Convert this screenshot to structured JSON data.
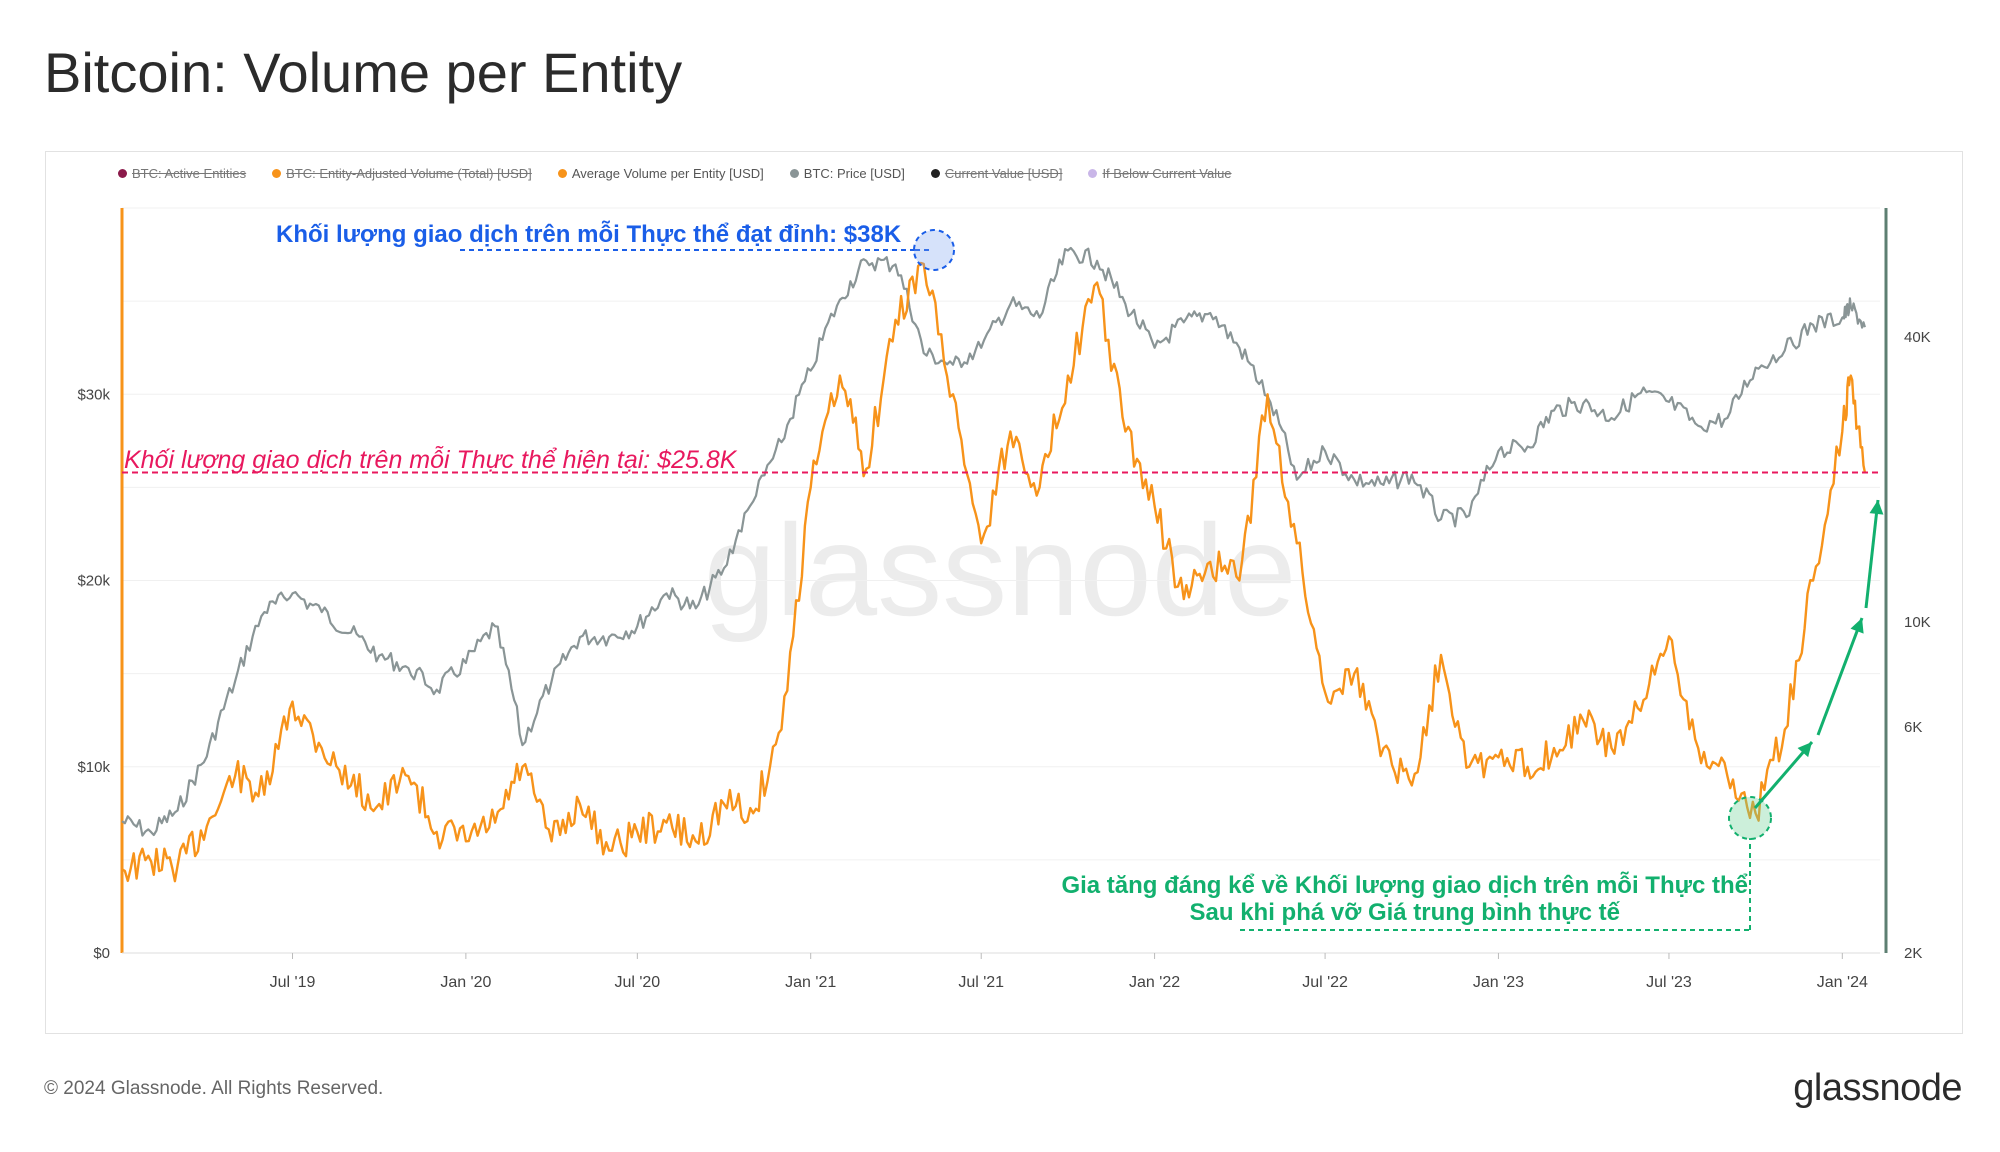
{
  "title": "Bitcoin: Volume per Entity",
  "footer": "© 2024 Glassnode. All Rights Reserved.",
  "brand": "glassnode",
  "watermark": "glassnode",
  "legend": [
    {
      "label": "BTC: Active Entities",
      "color": "#8b1a4a",
      "enabled": false
    },
    {
      "label": "BTC: Entity-Adjusted Volume (Total) [USD]",
      "color": "#f7931a",
      "enabled": false
    },
    {
      "label": "Average Volume per Entity [USD]",
      "color": "#f7931a",
      "enabled": true
    },
    {
      "label": "BTC: Price [USD]",
      "color": "#8a9596",
      "enabled": true
    },
    {
      "label": "Current Value [USD]",
      "color": "#222222",
      "enabled": false
    },
    {
      "label": "If Below Current Value",
      "color": "#c9b6e8",
      "enabled": false
    }
  ],
  "annotations": {
    "peak": "Khối lượng giao dịch trên mỗi Thực thể đạt đỉnh: $38K",
    "current": "Khối lượng giao dịch trên mỗi Thực thể hiện tại: $25.8K",
    "increase_line1": "Gia tăng đáng kể về Khối lượng giao dịch trên mỗi Thực thể",
    "increase_line2": "Sau khi phá vỡ Giá trung bình thực tế"
  },
  "colors": {
    "volume": "#f7931a",
    "price": "#8a9596",
    "peak_ann": "#1a5ee8",
    "current_ann": "#e8185e",
    "increase_ann": "#12b06e",
    "left_axis": "#f7931a",
    "right_axis": "#5d7f72"
  },
  "chart_data": {
    "type": "line",
    "x_ticks": [
      "Jul '19",
      "Jan '20",
      "Jul '20",
      "Jan '21",
      "Jul '21",
      "Jan '22",
      "Jul '22",
      "Jan '23",
      "Jul '23",
      "Jan '24"
    ],
    "x_range": [
      "2019-01-01",
      "2024-02-10"
    ],
    "y_left": {
      "ticks": [
        "$0",
        "$10k",
        "$20k",
        "$30k"
      ],
      "values": [
        0,
        10000,
        20000,
        30000
      ],
      "range": [
        0,
        40000
      ]
    },
    "y_right": {
      "ticks": [
        "2K",
        "6K",
        "10K",
        "40K"
      ],
      "values": [
        2000,
        6000,
        10000,
        40000
      ],
      "scale": "log",
      "range": [
        2000,
        75000
      ]
    },
    "reference_line": {
      "value": 25800,
      "axis": "left"
    },
    "series": [
      {
        "name": "Average Volume per Entity [USD]",
        "axis": "left",
        "points": [
          [
            "2019-01-01",
            4500
          ],
          [
            "2019-02-01",
            4900
          ],
          [
            "2019-03-01",
            4700
          ],
          [
            "2019-04-01",
            6800
          ],
          [
            "2019-05-01",
            9500
          ],
          [
            "2019-06-01",
            8500
          ],
          [
            "2019-07-01",
            13500
          ],
          [
            "2019-08-01",
            11000
          ],
          [
            "2019-09-01",
            9000
          ],
          [
            "2019-10-01",
            8000
          ],
          [
            "2019-11-01",
            9500
          ],
          [
            "2019-12-01",
            6500
          ],
          [
            "2020-01-01",
            6000
          ],
          [
            "2020-02-01",
            7000
          ],
          [
            "2020-03-01",
            10000
          ],
          [
            "2020-04-01",
            6000
          ],
          [
            "2020-05-01",
            8000
          ],
          [
            "2020-06-01",
            5500
          ],
          [
            "2020-07-01",
            6500
          ],
          [
            "2020-08-01",
            7000
          ],
          [
            "2020-09-01",
            6000
          ],
          [
            "2020-10-01",
            8000
          ],
          [
            "2020-11-01",
            7500
          ],
          [
            "2020-12-01",
            12000
          ],
          [
            "2021-01-01",
            25000
          ],
          [
            "2021-02-01",
            31000
          ],
          [
            "2021-03-01",
            26000
          ],
          [
            "2021-04-01",
            34000
          ],
          [
            "2021-05-01",
            37000
          ],
          [
            "2021-06-01",
            30000
          ],
          [
            "2021-07-01",
            22000
          ],
          [
            "2021-08-01",
            28000
          ],
          [
            "2021-09-01",
            25000
          ],
          [
            "2021-10-01",
            31000
          ],
          [
            "2021-11-01",
            36000
          ],
          [
            "2021-12-01",
            28000
          ],
          [
            "2022-01-01",
            24000
          ],
          [
            "2022-02-01",
            19000
          ],
          [
            "2022-03-01",
            21000
          ],
          [
            "2022-04-01",
            20000
          ],
          [
            "2022-05-01",
            30000
          ],
          [
            "2022-06-01",
            22000
          ],
          [
            "2022-07-01",
            14000
          ],
          [
            "2022-08-01",
            15000
          ],
          [
            "2022-09-01",
            11000
          ],
          [
            "2022-10-01",
            9000
          ],
          [
            "2022-11-01",
            16000
          ],
          [
            "2022-12-01",
            10000
          ],
          [
            "2023-01-01",
            10500
          ],
          [
            "2023-02-01",
            10000
          ],
          [
            "2023-03-01",
            11000
          ],
          [
            "2023-04-01",
            12500
          ],
          [
            "2023-05-01",
            11000
          ],
          [
            "2023-06-01",
            13000
          ],
          [
            "2023-07-01",
            17000
          ],
          [
            "2023-08-01",
            11000
          ],
          [
            "2023-09-01",
            9500
          ],
          [
            "2023-10-01",
            7500
          ],
          [
            "2023-11-01",
            12000
          ],
          [
            "2023-12-01",
            20000
          ],
          [
            "2024-01-01",
            28000
          ],
          [
            "2024-01-10",
            31000
          ],
          [
            "2024-01-25",
            25800
          ]
        ]
      },
      {
        "name": "BTC: Price [USD]",
        "axis": "right",
        "points": [
          [
            "2019-01-01",
            3800
          ],
          [
            "2019-02-01",
            3600
          ],
          [
            "2019-03-01",
            4000
          ],
          [
            "2019-04-01",
            5200
          ],
          [
            "2019-05-01",
            7500
          ],
          [
            "2019-06-01",
            10500
          ],
          [
            "2019-07-01",
            11500
          ],
          [
            "2019-08-01",
            10500
          ],
          [
            "2019-09-01",
            9500
          ],
          [
            "2019-10-01",
            8500
          ],
          [
            "2019-11-01",
            8000
          ],
          [
            "2019-12-01",
            7200
          ],
          [
            "2020-01-01",
            8200
          ],
          [
            "2020-02-01",
            9800
          ],
          [
            "2020-03-01",
            5500
          ],
          [
            "2020-04-01",
            7500
          ],
          [
            "2020-05-01",
            9300
          ],
          [
            "2020-06-01",
            9300
          ],
          [
            "2020-07-01",
            9800
          ],
          [
            "2020-08-01",
            11500
          ],
          [
            "2020-09-01",
            10700
          ],
          [
            "2020-10-01",
            13000
          ],
          [
            "2020-11-01",
            18000
          ],
          [
            "2020-12-01",
            24000
          ],
          [
            "2021-01-01",
            34000
          ],
          [
            "2021-02-01",
            48000
          ],
          [
            "2021-03-01",
            58000
          ],
          [
            "2021-04-01",
            57000
          ],
          [
            "2021-05-01",
            37000
          ],
          [
            "2021-06-01",
            35000
          ],
          [
            "2021-07-01",
            38000
          ],
          [
            "2021-08-01",
            47000
          ],
          [
            "2021-09-01",
            44000
          ],
          [
            "2021-10-01",
            61000
          ],
          [
            "2021-11-01",
            58000
          ],
          [
            "2021-12-01",
            47000
          ],
          [
            "2022-01-01",
            38000
          ],
          [
            "2022-02-01",
            43000
          ],
          [
            "2022-03-01",
            45000
          ],
          [
            "2022-04-01",
            38000
          ],
          [
            "2022-05-01",
            30000
          ],
          [
            "2022-06-01",
            20000
          ],
          [
            "2022-07-01",
            23000
          ],
          [
            "2022-08-01",
            20000
          ],
          [
            "2022-09-01",
            19500
          ],
          [
            "2022-10-01",
            20500
          ],
          [
            "2022-11-01",
            16500
          ],
          [
            "2022-12-01",
            16800
          ],
          [
            "2023-01-01",
            23000
          ],
          [
            "2023-02-01",
            23500
          ],
          [
            "2023-03-01",
            28000
          ],
          [
            "2023-04-01",
            29000
          ],
          [
            "2023-05-01",
            27000
          ],
          [
            "2023-06-01",
            30500
          ],
          [
            "2023-07-01",
            29200
          ],
          [
            "2023-08-01",
            26000
          ],
          [
            "2023-09-01",
            27000
          ],
          [
            "2023-10-01",
            34500
          ],
          [
            "2023-11-01",
            37500
          ],
          [
            "2023-12-01",
            42500
          ],
          [
            "2024-01-01",
            44000
          ],
          [
            "2024-01-10",
            46500
          ],
          [
            "2024-01-25",
            42000
          ]
        ]
      }
    ]
  }
}
